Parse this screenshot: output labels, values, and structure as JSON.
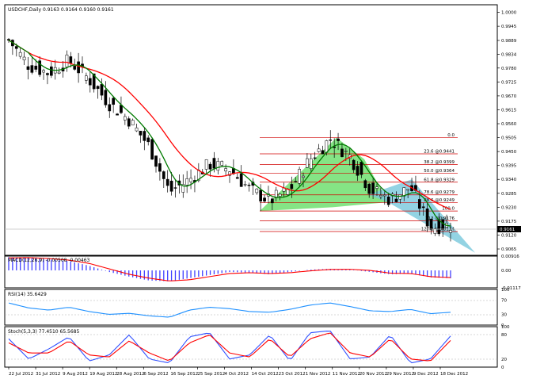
{
  "colors": {
    "background": "#ffffff",
    "frame": "#000000",
    "candle_up": "#ffffff",
    "candle_down": "#000000",
    "ma_fast": "#007a00",
    "ma_fast_alt": "#e8e800",
    "ma_slow": "#ff0000",
    "fib": "#d00000",
    "fib_label": "#000000",
    "wedge_green": "#66dd66",
    "wedge_blue": "#78c8dc",
    "macd_hist": "#4040ff",
    "macd_signal": "#ff0000",
    "rsi": "#1e90ff",
    "stoch_main": "#3050ff",
    "stoch_signal": "#ff0000",
    "price_tag_bg": "#000000"
  },
  "main": {
    "title": "USDCHF,Daily  0.9163 0.9164 0.9160 0.9161",
    "price_tag": "0.9161",
    "y_ticks": [
      "1.0000",
      "0.9945",
      "0.9889",
      "0.9834",
      "0.9780",
      "0.9725",
      "0.9670",
      "0.9615",
      "0.9560",
      "0.9505",
      "0.9450",
      "0.9395",
      "0.9340",
      "0.9285",
      "0.9230",
      "0.9175",
      "0.9120",
      "0.9065"
    ],
    "fib_levels": [
      {
        "label": "0.0",
        "price": 0.9505
      },
      {
        "label": "23.6 @0.9441",
        "price": 0.9441
      },
      {
        "label": "38.2 @0.9399",
        "price": 0.9399
      },
      {
        "label": "50.0 @0.9364",
        "price": 0.9364
      },
      {
        "label": "61.8 @0.9329",
        "price": 0.9329
      },
      {
        "label": "78.6 @0.9279",
        "price": 0.9279
      },
      {
        "label": "88.6 @0.9249",
        "price": 0.9249
      },
      {
        "label": "100.0",
        "price": 0.9215
      },
      {
        "label": "113 @0.9176",
        "price": 0.9176
      },
      {
        "label": "127.2 @0.9134",
        "price": 0.9134
      }
    ]
  },
  "macd": {
    "title": "MACD(12,26,9) -0.00508 -0.00463",
    "y_ticks": [
      "0.00916",
      "0.00",
      "-0.01117"
    ]
  },
  "rsi": {
    "title": "RSI(14) 35.6429",
    "y_ticks": [
      "100",
      "70",
      "30",
      "0"
    ]
  },
  "stoch": {
    "title": "Stoch(5,3,3) 77.4510 65.5685",
    "y_ticks": [
      "100",
      "80",
      "20",
      "0"
    ]
  },
  "x_ticks": [
    "22 Jul 2012",
    "31 Jul 2012",
    "9 Aug 2012",
    "19 Aug 2012",
    "28 Aug 2012",
    "6 Sep 2012",
    "16 Sep 2012",
    "25 Sep 2012",
    "4 Oct 2012",
    "14 Oct 2012",
    "23 Oct 2012",
    "1 Nov 2012",
    "11 Nov 2012",
    "20 Nov 2012",
    "29 Nov 2012",
    "9 Dec 2012",
    "18 Dec 2012"
  ],
  "chart_data": [
    {
      "type": "candlestick",
      "title": "USDCHF,Daily 0.9163 0.9164 0.9160 0.9161",
      "ylim": [
        0.904,
        1.003
      ],
      "x_range": [
        "20 Jul 2012",
        "21 Dec 2012"
      ],
      "series": [
        {
          "name": "close",
          "x": [
            "20 Jul 2012",
            "27 Jul 2012",
            "3 Aug 2012",
            "10 Aug 2012",
            "17 Aug 2012",
            "24 Aug 2012",
            "31 Aug 2012",
            "7 Sep 2012",
            "14 Sep 2012",
            "21 Sep 2012",
            "28 Sep 2012",
            "5 Oct 2012",
            "12 Oct 2012",
            "19 Oct 2012",
            "26 Oct 2012",
            "2 Nov 2012",
            "9 Nov 2012",
            "16 Nov 2012",
            "23 Nov 2012",
            "30 Nov 2012",
            "7 Dec 2012",
            "14 Dec 2012",
            "21 Dec 2012"
          ],
          "values": [
            0.989,
            0.979,
            0.976,
            0.981,
            0.9735,
            0.964,
            0.9575,
            0.947,
            0.929,
            0.934,
            0.94,
            0.938,
            0.93,
            0.9255,
            0.93,
            0.942,
            0.95,
            0.943,
            0.93,
            0.926,
            0.931,
            0.915,
            0.9161
          ]
        }
      ]
    },
    {
      "type": "line",
      "title": "MACD(12,26,9) -0.00508 -0.00463",
      "ylim": [
        -0.01117,
        0.00916
      ],
      "series": [
        {
          "name": "histogram",
          "values": [
            0.0085,
            0.008,
            0.007,
            0.006,
            0.003,
            -0.001,
            -0.004,
            -0.0065,
            -0.007,
            -0.005,
            -0.003,
            -0.001,
            -0.0015,
            -0.0025,
            -0.001,
            0.0005,
            0.001,
            0.0005,
            -0.001,
            -0.0025,
            -0.002,
            -0.0045,
            -0.005
          ]
        },
        {
          "name": "signal",
          "values": [
            0.008,
            0.0082,
            0.0076,
            0.0066,
            0.0045,
            0.001,
            -0.0025,
            -0.005,
            -0.0068,
            -0.006,
            -0.004,
            -0.002,
            -0.0015,
            -0.002,
            -0.0015,
            -0.0003,
            0.0006,
            0.0007,
            0.0,
            -0.0018,
            -0.002,
            -0.004,
            -0.0046
          ]
        }
      ]
    },
    {
      "type": "line",
      "title": "RSI(14) 35.6429",
      "ylim": [
        0,
        100
      ],
      "series": [
        {
          "values": [
            62,
            48,
            42,
            50,
            38,
            30,
            33,
            26,
            22,
            42,
            50,
            46,
            38,
            36,
            44,
            56,
            62,
            52,
            40,
            38,
            44,
            32,
            36
          ]
        }
      ]
    },
    {
      "type": "line",
      "title": "Stoch(5,3,3) 77.4510 65.5685",
      "ylim": [
        0,
        100
      ],
      "series": [
        {
          "values": [
            70,
            20,
            45,
            75,
            15,
            30,
            80,
            20,
            10,
            75,
            85,
            20,
            30,
            80,
            15,
            85,
            90,
            20,
            25,
            80,
            10,
            20,
            77
          ]
        },
        {
          "values": [
            60,
            35,
            35,
            65,
            30,
            25,
            65,
            35,
            15,
            60,
            80,
            35,
            25,
            70,
            25,
            70,
            85,
            35,
            25,
            70,
            20,
            15,
            66
          ]
        }
      ]
    }
  ]
}
